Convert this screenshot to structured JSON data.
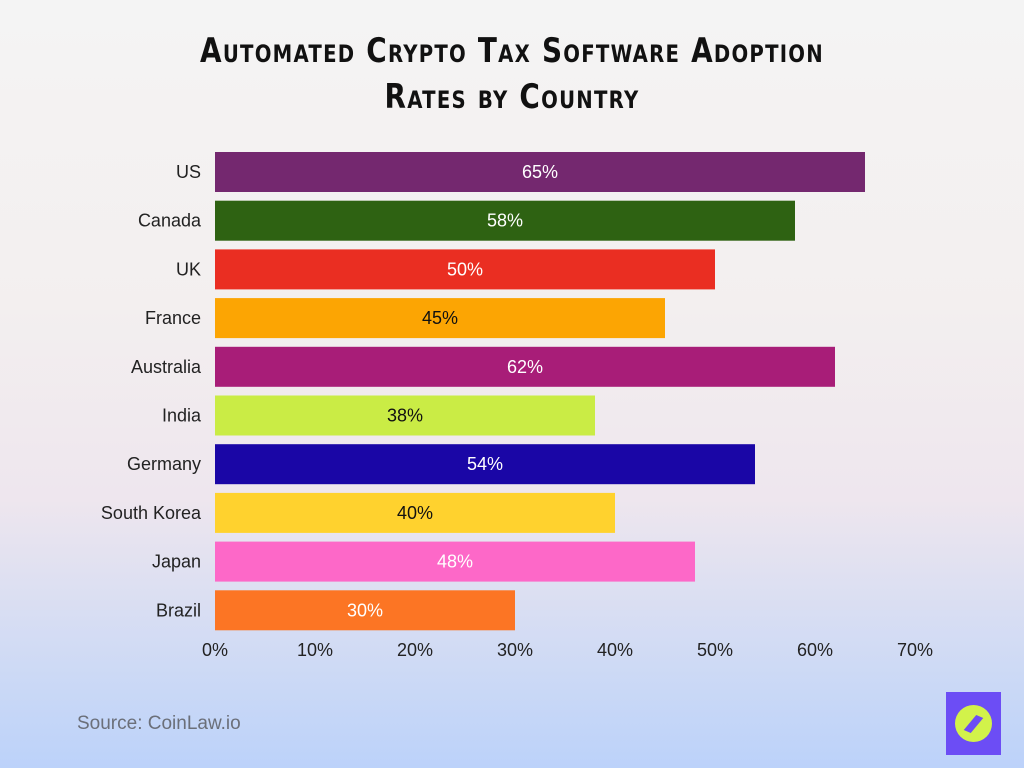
{
  "chart_data": {
    "type": "bar",
    "orientation": "horizontal",
    "title": "Automated Crypto Tax Software Adoption Rates by Country",
    "categories": [
      "US",
      "Canada",
      "UK",
      "France",
      "Australia",
      "India",
      "Germany",
      "South Korea",
      "Japan",
      "Brazil"
    ],
    "values": [
      65,
      58,
      50,
      45,
      62,
      38,
      54,
      40,
      48,
      30
    ],
    "data_labels": [
      "65%",
      "58%",
      "50%",
      "45%",
      "62%",
      "38%",
      "54%",
      "40%",
      "48%",
      "30%"
    ],
    "colors": [
      "#74286f",
      "#2e6212",
      "#ea2e22",
      "#fca503",
      "#a81d78",
      "#caec45",
      "#1a06a6",
      "#ffd22e",
      "#fd68c8",
      "#fc7524"
    ],
    "label_colors": [
      "#ffffff",
      "#ffffff",
      "#ffffff",
      "#111111",
      "#ffffff",
      "#111111",
      "#ffffff",
      "#111111",
      "#ffffff",
      "#ffffff"
    ],
    "xlim": [
      0,
      70
    ],
    "xticks": [
      "0%",
      "10%",
      "20%",
      "30%",
      "40%",
      "50%",
      "60%",
      "70%"
    ],
    "grid": false,
    "legend": "none"
  },
  "source": "Source: CoinLaw.io",
  "logo": {
    "icon": "compass-icon",
    "colors": [
      "#6c4df5",
      "#d2f24a"
    ]
  }
}
